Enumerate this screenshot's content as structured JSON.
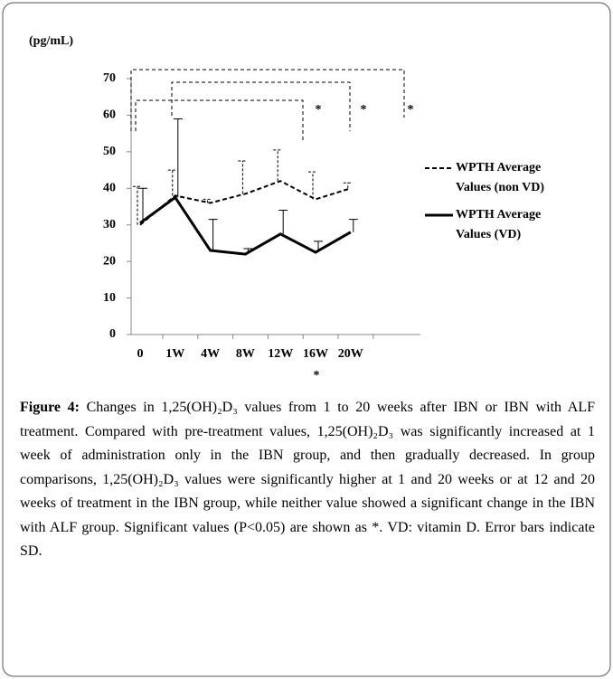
{
  "chart_data": {
    "type": "line",
    "ylabel": "(pg/mL)",
    "categories": [
      "0",
      "1W",
      "4W",
      "8W",
      "12W",
      "16W",
      "20W"
    ],
    "series": [
      {
        "name": "WPTH Average Values (non VD)",
        "color": "#000000",
        "line_style": "dashed",
        "values": [
          30,
          38,
          36,
          38.5,
          42,
          37,
          40
        ],
        "errors": [
          10.5,
          7,
          1,
          9,
          8.5,
          7.5,
          1.5
        ]
      },
      {
        "name": "WPTH Average Values (VD)",
        "color": "#000000",
        "line_style": "solid",
        "values": [
          30.5,
          37.5,
          23,
          22,
          27.5,
          22.5,
          28
        ],
        "errors": [
          9.5,
          21.5,
          8.5,
          1.5,
          6.5,
          3,
          3.5
        ]
      }
    ],
    "ylim": [
      0,
      70
    ],
    "yticks": [
      0,
      10,
      20,
      30,
      40,
      50,
      60,
      70
    ],
    "annotations": [
      "*",
      "*",
      "*",
      "*"
    ]
  },
  "caption": {
    "label": "Figure 4:",
    "text": "Changes in 1,25(OH)₂D₃ values from 1 to 20 weeks after IBN or IBN with ALF treatment. Compared with pre-treatment values, 1,25(OH)₂D₃ was significantly increased at 1 week of administration only in the IBN group, and then gradually decreased. In group comparisons, 1,25(OH)₂D₃ values were significantly higher at 1 and 20 weeks or at 12 and 20 weeks of treatment in the IBN group, while neither value showed a significant change in the IBN with ALF group. Significant values (P<0.05) are shown as *. VD: vitamin D. Error bars indicate SD."
  }
}
